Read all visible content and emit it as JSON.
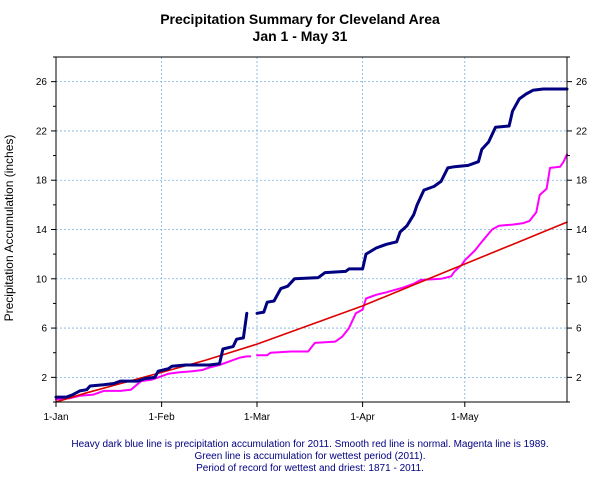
{
  "chart_data": {
    "type": "line",
    "title": "Precipitation Summary for Cleveland Area",
    "subtitle": "Jan 1 - May 31",
    "ylabel": "Precipitation Accumulation (inches)",
    "xlabel": "",
    "xlim": [
      1,
      151
    ],
    "ylim": [
      0,
      28
    ],
    "yticks": [
      2,
      6,
      10,
      14,
      18,
      22,
      26
    ],
    "xticks": [
      {
        "day": 1,
        "label": "1-Jan"
      },
      {
        "day": 32,
        "label": "1-Feb"
      },
      {
        "day": 60,
        "label": "1-Mar"
      },
      {
        "day": 91,
        "label": "1-Apr"
      },
      {
        "day": 121,
        "label": "1-May"
      }
    ],
    "grid": true,
    "legend": "none",
    "series": [
      {
        "color": "#ff00ff",
        "width": 2,
        "points": [
          [
            1,
            0.2
          ],
          [
            5,
            0.3
          ],
          [
            8,
            0.5
          ],
          [
            12,
            0.6
          ],
          [
            15,
            0.9
          ],
          [
            20,
            0.9
          ],
          [
            23,
            1.0
          ],
          [
            26,
            1.7
          ],
          [
            29,
            1.8
          ],
          [
            31,
            2.0
          ],
          [
            34,
            2.3
          ],
          [
            37,
            2.4
          ],
          [
            41,
            2.5
          ],
          [
            44,
            2.6
          ],
          [
            46,
            2.8
          ],
          [
            49,
            3.0
          ],
          [
            52,
            3.3
          ],
          [
            55,
            3.6
          ],
          [
            57,
            3.7
          ],
          [
            58,
            3.7
          ],
          [
            null,
            null
          ],
          [
            60,
            3.8
          ],
          [
            63,
            3.8
          ],
          [
            64,
            4.0
          ],
          [
            70,
            4.1
          ],
          [
            75,
            4.1
          ],
          [
            77,
            4.8
          ],
          [
            83,
            4.9
          ],
          [
            85,
            5.3
          ],
          [
            87,
            6.0
          ],
          [
            89,
            7.2
          ],
          [
            91,
            7.5
          ],
          [
            92,
            8.4
          ],
          [
            95,
            8.7
          ],
          [
            98,
            8.9
          ],
          [
            103,
            9.3
          ],
          [
            106,
            9.6
          ],
          [
            108,
            9.9
          ],
          [
            114,
            10.0
          ],
          [
            117,
            10.2
          ],
          [
            118,
            10.6
          ],
          [
            120,
            11.1
          ],
          [
            121,
            11.5
          ],
          [
            124,
            12.3
          ],
          [
            126,
            13.0
          ],
          [
            129,
            14.0
          ],
          [
            131,
            14.3
          ],
          [
            135,
            14.4
          ],
          [
            138,
            14.5
          ],
          [
            140,
            14.7
          ],
          [
            142,
            15.4
          ],
          [
            143,
            16.8
          ],
          [
            145,
            17.3
          ],
          [
            146,
            19.0
          ],
          [
            149,
            19.1
          ],
          [
            150,
            19.5
          ],
          [
            151,
            20.1
          ]
        ]
      },
      {
        "color": "#dd0000",
        "width": 1.6,
        "points": [
          [
            1,
            0.0
          ],
          [
            10,
            0.75
          ],
          [
            20,
            1.5
          ],
          [
            32,
            2.4
          ],
          [
            45,
            3.4
          ],
          [
            60,
            4.7
          ],
          [
            75,
            6.2
          ],
          [
            91,
            7.8
          ],
          [
            106,
            9.5
          ],
          [
            121,
            11.2
          ],
          [
            136,
            12.9
          ],
          [
            151,
            14.6
          ]
        ]
      },
      {
        "color": "#000080",
        "width": 3,
        "points": [
          [
            1,
            0.4
          ],
          [
            4,
            0.4
          ],
          [
            6,
            0.6
          ],
          [
            8,
            0.9
          ],
          [
            10,
            1.0
          ],
          [
            11,
            1.3
          ],
          [
            15,
            1.4
          ],
          [
            18,
            1.5
          ],
          [
            20,
            1.7
          ],
          [
            25,
            1.7
          ],
          [
            27,
            1.9
          ],
          [
            30,
            2.0
          ],
          [
            31,
            2.5
          ],
          [
            34,
            2.7
          ],
          [
            35,
            2.9
          ],
          [
            39,
            3.0
          ],
          [
            46,
            3.0
          ],
          [
            49,
            3.1
          ],
          [
            50,
            4.3
          ],
          [
            53,
            4.5
          ],
          [
            54,
            5.1
          ],
          [
            56,
            5.2
          ],
          [
            57,
            7.2
          ],
          [
            null,
            null
          ],
          [
            60,
            7.2
          ],
          [
            62,
            7.3
          ],
          [
            63,
            8.1
          ],
          [
            65,
            8.2
          ],
          [
            67,
            9.2
          ],
          [
            69,
            9.4
          ],
          [
            71,
            10.0
          ],
          [
            78,
            10.1
          ],
          [
            80,
            10.5
          ],
          [
            86,
            10.6
          ],
          [
            87,
            10.8
          ],
          [
            91,
            10.8
          ],
          [
            92,
            12.0
          ],
          [
            95,
            12.5
          ],
          [
            98,
            12.8
          ],
          [
            101,
            13.0
          ],
          [
            102,
            13.8
          ],
          [
            104,
            14.3
          ],
          [
            106,
            15.2
          ],
          [
            107,
            16.0
          ],
          [
            109,
            17.2
          ],
          [
            112,
            17.5
          ],
          [
            114,
            17.9
          ],
          [
            116,
            19.0
          ],
          [
            118,
            19.1
          ],
          [
            122,
            19.2
          ],
          [
            125,
            19.5
          ],
          [
            126,
            20.5
          ],
          [
            128,
            21.1
          ],
          [
            130,
            22.3
          ],
          [
            134,
            22.4
          ],
          [
            135,
            23.6
          ],
          [
            137,
            24.6
          ],
          [
            139,
            25.0
          ],
          [
            141,
            25.3
          ],
          [
            144,
            25.4
          ],
          [
            151,
            25.4
          ]
        ]
      }
    ],
    "caption": [
      "Heavy dark blue line is precipitation accumulation for 2011. Smooth red line is normal. Magenta line is 1989.",
      "Green line is accumulation for wettest period (2011).",
      "Period of record for wettest and driest: 1871 - 2011."
    ]
  }
}
